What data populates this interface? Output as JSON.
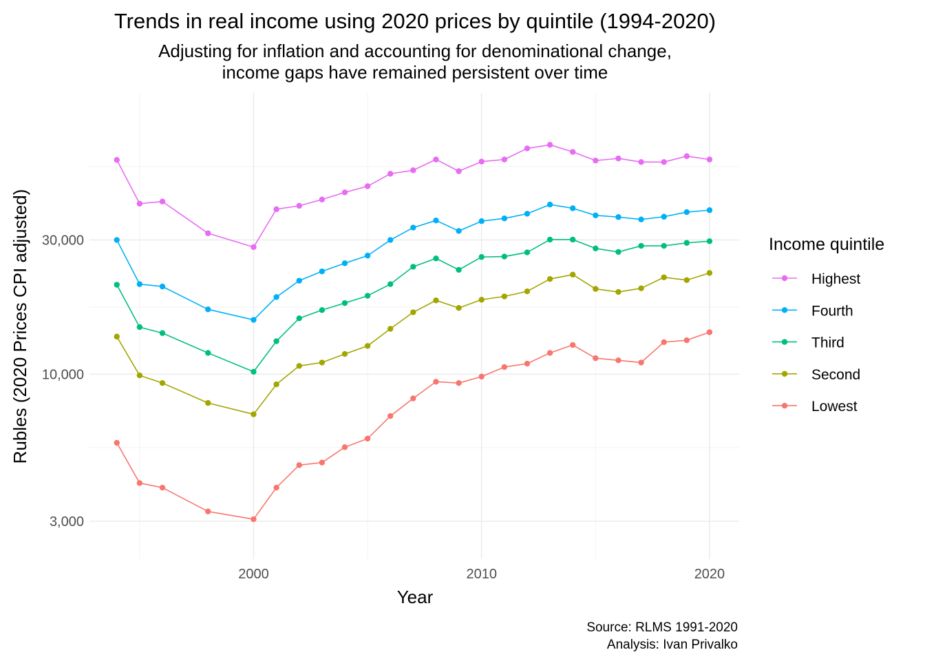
{
  "chart_data": {
    "type": "line",
    "title": "Trends in real income using 2020 prices by quintile (1994-2020)",
    "subtitle_lines": [
      "Adjusting for inflation and accounting for denominational change,",
      "income gaps have remained persistent over time"
    ],
    "xlabel": "Year",
    "ylabel": "Rubles (2020 Prices CPI adjusted)",
    "y_scale": "log",
    "xlim": [
      1992.8,
      2021.3
    ],
    "ylim": [
      2200,
      100000
    ],
    "x_ticks": [
      2000,
      2010,
      2020
    ],
    "x_tick_labels": [
      "2000",
      "2010",
      "2020"
    ],
    "y_ticks": [
      3000,
      10000,
      30000
    ],
    "y_tick_labels": [
      "3,000",
      "10,000",
      "30,000"
    ],
    "grid": true,
    "legend": {
      "title": "Income quintile",
      "position": "right"
    },
    "x": [
      1994,
      1995,
      1996,
      1998,
      2000,
      2001,
      2002,
      2003,
      2004,
      2005,
      2006,
      2007,
      2008,
      2009,
      2010,
      2011,
      2012,
      2013,
      2014,
      2015,
      2016,
      2017,
      2018,
      2019,
      2020
    ],
    "series": [
      {
        "name": "Highest",
        "color": "#E76BF3",
        "values": [
          57800,
          40400,
          41100,
          31700,
          28300,
          38600,
          39700,
          41800,
          44300,
          46600,
          51600,
          53100,
          58000,
          52700,
          57000,
          58000,
          63500,
          65400,
          61700,
          57500,
          58500,
          56800,
          56800,
          59600,
          58000
        ]
      },
      {
        "name": "Fourth",
        "color": "#00B0F6",
        "values": [
          30000,
          20900,
          20500,
          17000,
          15600,
          18800,
          21500,
          23200,
          24800,
          26400,
          30000,
          33200,
          35200,
          32300,
          35000,
          35800,
          37200,
          40100,
          38900,
          36700,
          36200,
          35500,
          36300,
          37700,
          38300
        ]
      },
      {
        "name": "Third",
        "color": "#00BF7D",
        "values": [
          20800,
          14700,
          14000,
          11900,
          10200,
          13100,
          15800,
          16900,
          17900,
          19000,
          20900,
          24100,
          25800,
          23500,
          26100,
          26200,
          27100,
          30100,
          30100,
          28000,
          27200,
          28600,
          28600,
          29300,
          29700
        ]
      },
      {
        "name": "Second",
        "color": "#A3A500",
        "values": [
          13600,
          9900,
          9300,
          7900,
          7200,
          9200,
          10700,
          11000,
          11800,
          12600,
          14500,
          16600,
          18300,
          17200,
          18400,
          18900,
          19700,
          21800,
          22600,
          20100,
          19600,
          20200,
          22100,
          21600,
          22900
        ]
      },
      {
        "name": "Lowest",
        "color": "#F8766D",
        "values": [
          5700,
          4100,
          3950,
          3250,
          3050,
          3950,
          4750,
          4850,
          5500,
          5900,
          7100,
          8200,
          9400,
          9300,
          9800,
          10600,
          10900,
          11900,
          12700,
          11400,
          11200,
          11000,
          13000,
          13200,
          14100
        ]
      }
    ],
    "caption_lines": [
      "Source: RLMS 1991-2020",
      "Analysis: Ivan Privalko"
    ]
  }
}
